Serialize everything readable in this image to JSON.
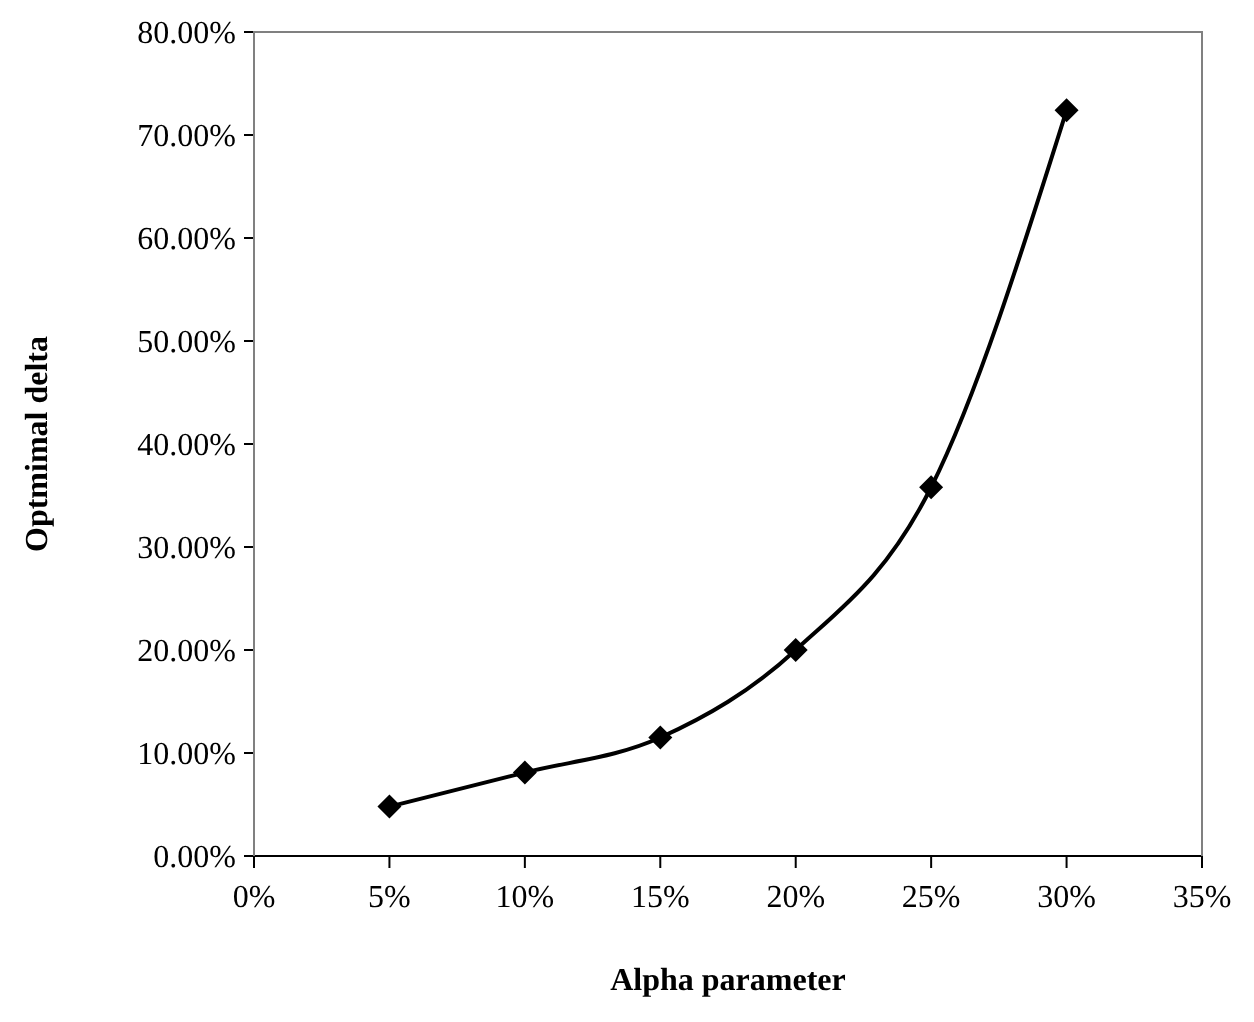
{
  "chart_data": {
    "type": "line",
    "xlabel": "Alpha parameter",
    "ylabel": "Optmimal delta",
    "x": [
      5,
      10,
      15,
      20,
      25,
      30
    ],
    "series": [
      {
        "color": "#000000",
        "values": [
          4.8,
          8.1,
          11.5,
          20.0,
          35.8,
          72.4
        ]
      }
    ],
    "xlim": [
      0,
      35
    ],
    "xticks": [
      {
        "value": 0,
        "label": "0%"
      },
      {
        "value": 5,
        "label": "5%"
      },
      {
        "value": 10,
        "label": "10%"
      },
      {
        "value": 15,
        "label": "15%"
      },
      {
        "value": 20,
        "label": "20%"
      },
      {
        "value": 25,
        "label": "25%"
      },
      {
        "value": 30,
        "label": "30%"
      },
      {
        "value": 35,
        "label": "35%"
      }
    ],
    "ylim": [
      0,
      80
    ],
    "yticks": [
      {
        "value": 0,
        "label": "0.00%"
      },
      {
        "value": 10,
        "label": "10.00%"
      },
      {
        "value": 20,
        "label": "20.00%"
      },
      {
        "value": 30,
        "label": "30.00%"
      },
      {
        "value": 40,
        "label": "40.00%"
      },
      {
        "value": 50,
        "label": "50.00%"
      },
      {
        "value": 60,
        "label": "60.00%"
      },
      {
        "value": 70,
        "label": "70.00%"
      },
      {
        "value": 80,
        "label": "80.00%"
      }
    ],
    "grid": false,
    "legend": false,
    "marker": "diamond",
    "line_style": "solid"
  }
}
